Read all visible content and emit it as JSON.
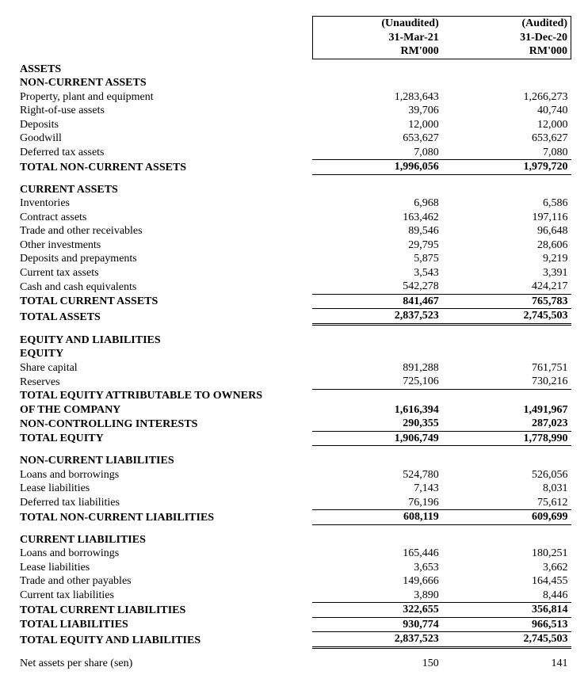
{
  "header": {
    "col1": {
      "l1": "(Unaudited)",
      "l2": "31-Mar-21",
      "l3": "RM'000"
    },
    "col2": {
      "l1": "(Audited)",
      "l2": "31-Dec-20",
      "l3": "RM'000"
    }
  },
  "sections": {
    "assets": "ASSETS",
    "nca": "NON-CURRENT ASSETS",
    "ca": "CURRENT ASSETS",
    "el": "EQUITY AND LIABILITIES",
    "eq": "EQUITY",
    "ncl": "NON-CURRENT LIABILITIES",
    "cl": "CURRENT LIABILITIES"
  },
  "rows": {
    "ppe": {
      "label": "Property, plant and equipment",
      "v1": "1,283,643",
      "v2": "1,266,273"
    },
    "rou": {
      "label": "Right-of-use assets",
      "v1": "39,706",
      "v2": "40,740"
    },
    "dep": {
      "label": "Deposits",
      "v1": "12,000",
      "v2": "12,000"
    },
    "gw": {
      "label": "Goodwill",
      "v1": "653,627",
      "v2": "653,627"
    },
    "dta": {
      "label": "Deferred tax assets",
      "v1": "7,080",
      "v2": "7,080"
    },
    "tnca": {
      "label": "TOTAL NON-CURRENT ASSETS",
      "v1": "1,996,056",
      "v2": "1,979,720"
    },
    "inv": {
      "label": "Inventories",
      "v1": "6,968",
      "v2": "6,586"
    },
    "conasset": {
      "label": "Contract assets",
      "v1": "163,462",
      "v2": "197,116"
    },
    "tor": {
      "label": "Trade and other receivables",
      "v1": "89,546",
      "v2": "96,648"
    },
    "oinv": {
      "label": "Other investments",
      "v1": "29,795",
      "v2": "28,606"
    },
    "depprep": {
      "label": "Deposits and prepayments",
      "v1": "5,875",
      "v2": "9,219"
    },
    "cta": {
      "label": "Current tax assets",
      "v1": "3,543",
      "v2": "3,391"
    },
    "cash": {
      "label": "Cash and cash equivalents",
      "v1": "542,278",
      "v2": "424,217"
    },
    "tca": {
      "label": "TOTAL CURRENT ASSETS",
      "v1": "841,467",
      "v2": "765,783"
    },
    "ta": {
      "label": "TOTAL ASSETS",
      "v1": "2,837,523",
      "v2": "2,745,503"
    },
    "sc": {
      "label": "Share capital",
      "v1": "891,288",
      "v2": "761,751"
    },
    "res": {
      "label": "Reserves",
      "v1": "725,106",
      "v2": "730,216"
    },
    "teo1": {
      "label": "TOTAL EQUITY ATTRIBUTABLE TO OWNERS"
    },
    "teo2": {
      "label": "OF THE COMPANY",
      "v1": "1,616,394",
      "v2": "1,491,967"
    },
    "nci": {
      "label": "NON-CONTROLLING INTERESTS",
      "v1": "290,355",
      "v2": "287,023"
    },
    "te": {
      "label": "TOTAL EQUITY",
      "v1": "1,906,749",
      "v2": "1,778,990"
    },
    "lb": {
      "label": "Loans and borrowings",
      "v1": "524,780",
      "v2": "526,056"
    },
    "ll": {
      "label": "Lease liabilities",
      "v1": "7,143",
      "v2": "8,031"
    },
    "dtl": {
      "label": "Deferred tax liabilities",
      "v1": "76,196",
      "v2": "75,612"
    },
    "tncl": {
      "label": "TOTAL NON-CURRENT LIABILITIES",
      "v1": "608,119",
      "v2": "609,699"
    },
    "lb2": {
      "label": "Loans and borrowings",
      "v1": "165,446",
      "v2": "180,251"
    },
    "ll2": {
      "label": "Lease liabilities",
      "v1": "3,653",
      "v2": "3,662"
    },
    "top": {
      "label": "Trade and other payables",
      "v1": "149,666",
      "v2": "164,455"
    },
    "ctl": {
      "label": "Current tax liabilities",
      "v1": "3,890",
      "v2": "8,446"
    },
    "tcl": {
      "label": "TOTAL CURRENT LIABILITIES",
      "v1": "322,655",
      "v2": "356,814"
    },
    "tl": {
      "label": "TOTAL LIABILITIES",
      "v1": "930,774",
      "v2": "966,513"
    },
    "tel": {
      "label": "TOTAL EQUITY AND LIABILITIES",
      "v1": "2,837,523",
      "v2": "2,745,503"
    },
    "naps": {
      "label": "Net assets per share (sen)",
      "v1": "150",
      "v2": "141"
    }
  }
}
